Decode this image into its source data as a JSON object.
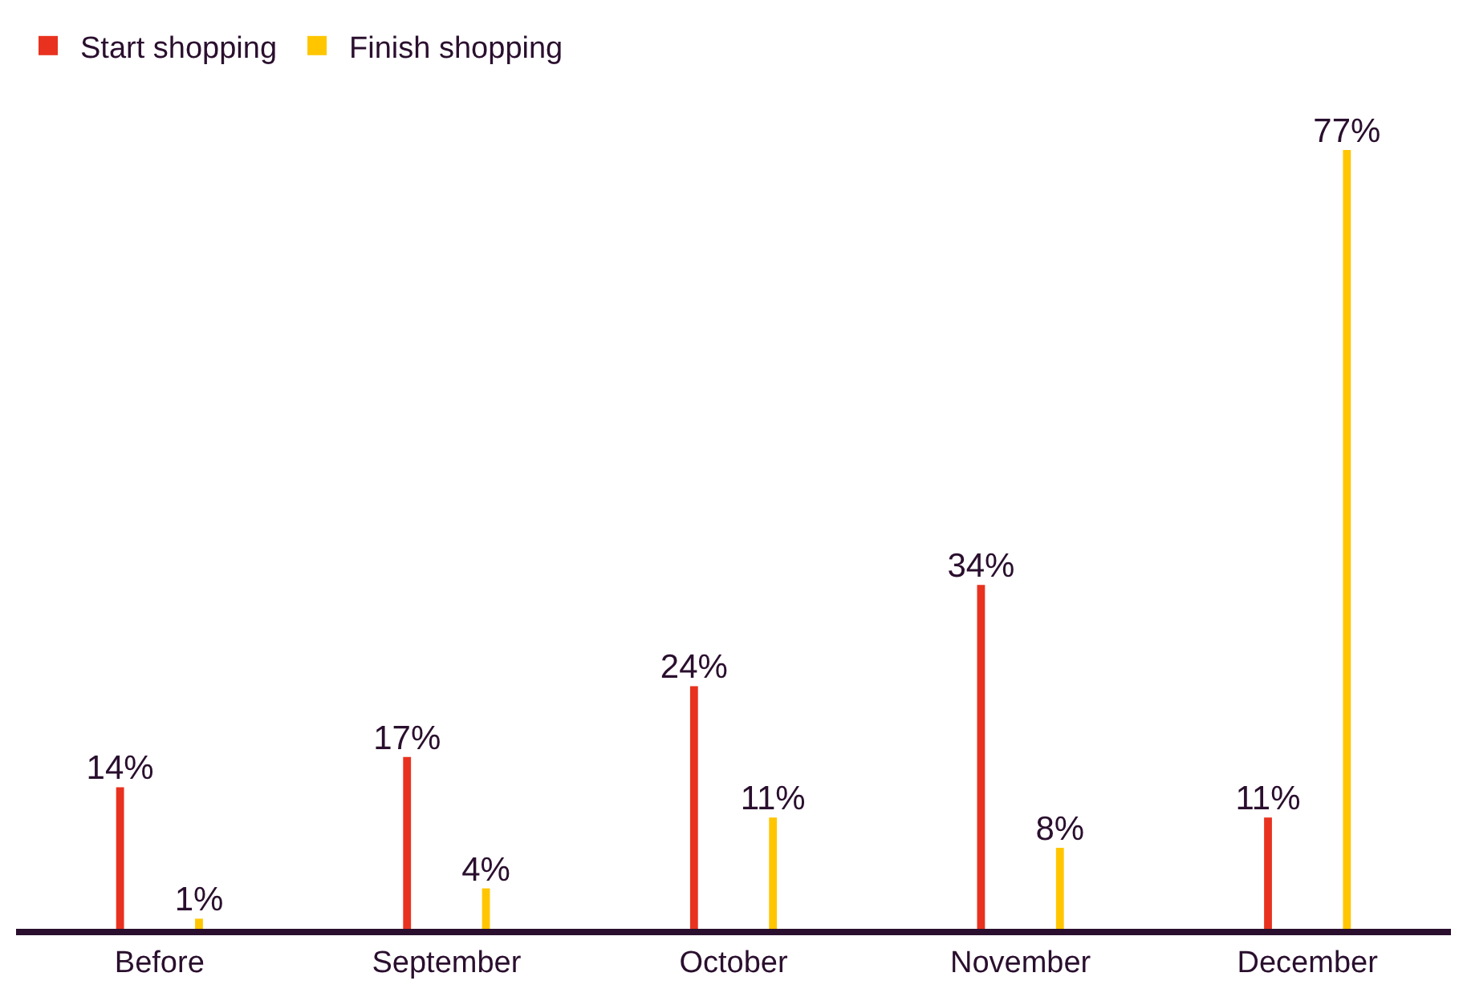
{
  "chart_data": {
    "type": "bar",
    "categories": [
      "Before",
      "September",
      "October",
      "November",
      "December"
    ],
    "series": [
      {
        "name": "Start shopping",
        "color": "#e8321f",
        "values": [
          14,
          17,
          24,
          34,
          11
        ],
        "value_labels": [
          "14%",
          "17%",
          "24%",
          "34%",
          "11%"
        ]
      },
      {
        "name": "Finish shopping",
        "color": "#ffc600",
        "values": [
          1,
          4,
          11,
          8,
          77
        ],
        "value_labels": [
          "1%",
          "4%",
          "11%",
          "8%",
          "77%"
        ]
      }
    ],
    "tick_labels": "x",
    "legend": "top left"
  }
}
